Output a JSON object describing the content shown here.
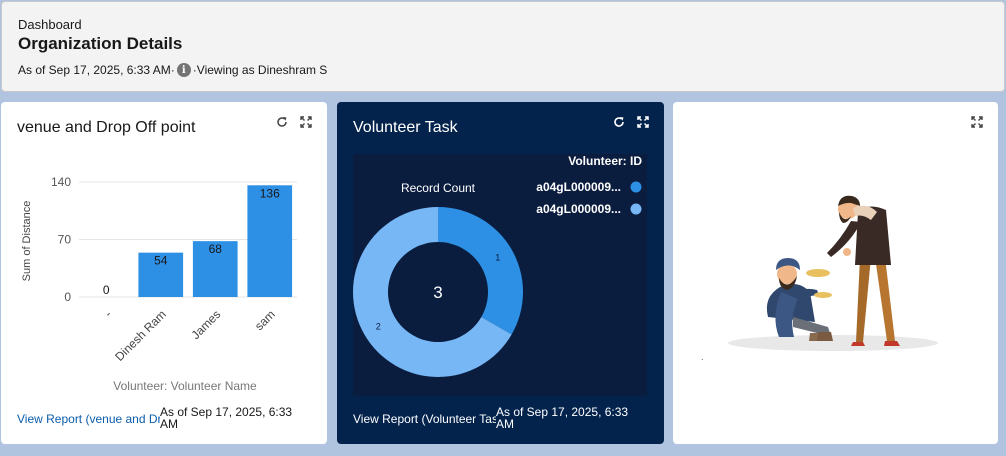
{
  "header": {
    "breadcrumb": "Dashboard",
    "title": "Organization Details",
    "as_of": "As of Sep 17, 2025, 6:33 AM·",
    "viewing": "·Viewing as Dineshram S",
    "info_glyph": "i"
  },
  "cards": {
    "bar": {
      "title": "venue and Drop Off point",
      "report_link": "View Report (venue and Dr",
      "as_of": "As of Sep 17, 2025, 6:33 AM"
    },
    "donut": {
      "title": "Volunteer Task",
      "report_link": "View Report (Volunteer Tas",
      "as_of": "As of Sep 17, 2025, 6:33 AM",
      "legend_title": "Volunteer: ID",
      "chart_title": "Record Count",
      "total": "3"
    },
    "image": {
      "caption": "."
    }
  },
  "colors": {
    "bar": "#2e90e5",
    "slice_dark": "#2e90e5",
    "slice_light": "#78b7f5",
    "panel": "#03234d"
  },
  "chart_data": [
    {
      "type": "bar",
      "categories": [
        "-",
        "Dinesh Ram",
        "James",
        "sam"
      ],
      "values": [
        0,
        54,
        68,
        136
      ],
      "xlabel": "Volunteer: Volunteer Name",
      "ylabel": "Sum of Distance",
      "ylim": [
        0,
        140
      ],
      "yticks": [
        0,
        70,
        140
      ],
      "grid": true
    },
    {
      "type": "pie",
      "donut": true,
      "title": "Record Count",
      "legend_title": "Volunteer: ID",
      "legend_position": "top-right",
      "labels": [
        "a04gL000009...",
        "a04gL000009..."
      ],
      "values": [
        1,
        2
      ]
    }
  ]
}
